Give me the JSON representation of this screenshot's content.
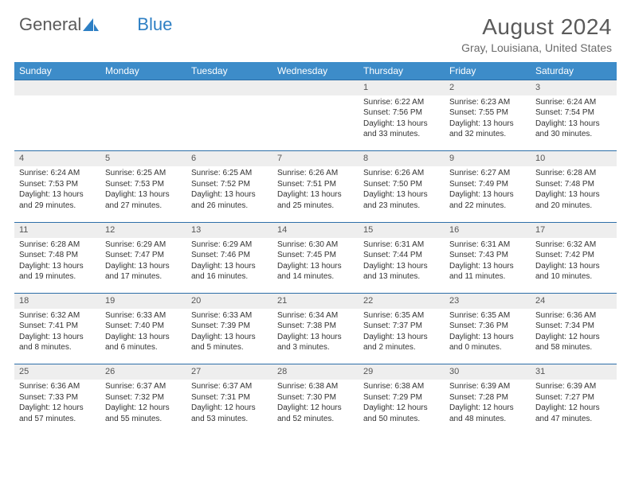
{
  "brand": {
    "word1": "General",
    "word2": "Blue"
  },
  "title": "August 2024",
  "location": "Gray, Louisiana, United States",
  "colors": {
    "header_bg": "#3d8cc9",
    "header_text": "#ffffff",
    "daynum_bg": "#eeeeee",
    "week_divider": "#2d6ea8",
    "text": "#333333",
    "title_color": "#5a5a5a"
  },
  "weekdays": [
    "Sunday",
    "Monday",
    "Tuesday",
    "Wednesday",
    "Thursday",
    "Friday",
    "Saturday"
  ],
  "weeks": [
    {
      "nums": [
        "",
        "",
        "",
        "",
        "1",
        "2",
        "3"
      ],
      "cells": [
        null,
        null,
        null,
        null,
        {
          "sunrise": "Sunrise: 6:22 AM",
          "sunset": "Sunset: 7:56 PM",
          "day1": "Daylight: 13 hours",
          "day2": "and 33 minutes."
        },
        {
          "sunrise": "Sunrise: 6:23 AM",
          "sunset": "Sunset: 7:55 PM",
          "day1": "Daylight: 13 hours",
          "day2": "and 32 minutes."
        },
        {
          "sunrise": "Sunrise: 6:24 AM",
          "sunset": "Sunset: 7:54 PM",
          "day1": "Daylight: 13 hours",
          "day2": "and 30 minutes."
        }
      ]
    },
    {
      "nums": [
        "4",
        "5",
        "6",
        "7",
        "8",
        "9",
        "10"
      ],
      "cells": [
        {
          "sunrise": "Sunrise: 6:24 AM",
          "sunset": "Sunset: 7:53 PM",
          "day1": "Daylight: 13 hours",
          "day2": "and 29 minutes."
        },
        {
          "sunrise": "Sunrise: 6:25 AM",
          "sunset": "Sunset: 7:53 PM",
          "day1": "Daylight: 13 hours",
          "day2": "and 27 minutes."
        },
        {
          "sunrise": "Sunrise: 6:25 AM",
          "sunset": "Sunset: 7:52 PM",
          "day1": "Daylight: 13 hours",
          "day2": "and 26 minutes."
        },
        {
          "sunrise": "Sunrise: 6:26 AM",
          "sunset": "Sunset: 7:51 PM",
          "day1": "Daylight: 13 hours",
          "day2": "and 25 minutes."
        },
        {
          "sunrise": "Sunrise: 6:26 AM",
          "sunset": "Sunset: 7:50 PM",
          "day1": "Daylight: 13 hours",
          "day2": "and 23 minutes."
        },
        {
          "sunrise": "Sunrise: 6:27 AM",
          "sunset": "Sunset: 7:49 PM",
          "day1": "Daylight: 13 hours",
          "day2": "and 22 minutes."
        },
        {
          "sunrise": "Sunrise: 6:28 AM",
          "sunset": "Sunset: 7:48 PM",
          "day1": "Daylight: 13 hours",
          "day2": "and 20 minutes."
        }
      ]
    },
    {
      "nums": [
        "11",
        "12",
        "13",
        "14",
        "15",
        "16",
        "17"
      ],
      "cells": [
        {
          "sunrise": "Sunrise: 6:28 AM",
          "sunset": "Sunset: 7:48 PM",
          "day1": "Daylight: 13 hours",
          "day2": "and 19 minutes."
        },
        {
          "sunrise": "Sunrise: 6:29 AM",
          "sunset": "Sunset: 7:47 PM",
          "day1": "Daylight: 13 hours",
          "day2": "and 17 minutes."
        },
        {
          "sunrise": "Sunrise: 6:29 AM",
          "sunset": "Sunset: 7:46 PM",
          "day1": "Daylight: 13 hours",
          "day2": "and 16 minutes."
        },
        {
          "sunrise": "Sunrise: 6:30 AM",
          "sunset": "Sunset: 7:45 PM",
          "day1": "Daylight: 13 hours",
          "day2": "and 14 minutes."
        },
        {
          "sunrise": "Sunrise: 6:31 AM",
          "sunset": "Sunset: 7:44 PM",
          "day1": "Daylight: 13 hours",
          "day2": "and 13 minutes."
        },
        {
          "sunrise": "Sunrise: 6:31 AM",
          "sunset": "Sunset: 7:43 PM",
          "day1": "Daylight: 13 hours",
          "day2": "and 11 minutes."
        },
        {
          "sunrise": "Sunrise: 6:32 AM",
          "sunset": "Sunset: 7:42 PM",
          "day1": "Daylight: 13 hours",
          "day2": "and 10 minutes."
        }
      ]
    },
    {
      "nums": [
        "18",
        "19",
        "20",
        "21",
        "22",
        "23",
        "24"
      ],
      "cells": [
        {
          "sunrise": "Sunrise: 6:32 AM",
          "sunset": "Sunset: 7:41 PM",
          "day1": "Daylight: 13 hours",
          "day2": "and 8 minutes."
        },
        {
          "sunrise": "Sunrise: 6:33 AM",
          "sunset": "Sunset: 7:40 PM",
          "day1": "Daylight: 13 hours",
          "day2": "and 6 minutes."
        },
        {
          "sunrise": "Sunrise: 6:33 AM",
          "sunset": "Sunset: 7:39 PM",
          "day1": "Daylight: 13 hours",
          "day2": "and 5 minutes."
        },
        {
          "sunrise": "Sunrise: 6:34 AM",
          "sunset": "Sunset: 7:38 PM",
          "day1": "Daylight: 13 hours",
          "day2": "and 3 minutes."
        },
        {
          "sunrise": "Sunrise: 6:35 AM",
          "sunset": "Sunset: 7:37 PM",
          "day1": "Daylight: 13 hours",
          "day2": "and 2 minutes."
        },
        {
          "sunrise": "Sunrise: 6:35 AM",
          "sunset": "Sunset: 7:36 PM",
          "day1": "Daylight: 13 hours",
          "day2": "and 0 minutes."
        },
        {
          "sunrise": "Sunrise: 6:36 AM",
          "sunset": "Sunset: 7:34 PM",
          "day1": "Daylight: 12 hours",
          "day2": "and 58 minutes."
        }
      ]
    },
    {
      "nums": [
        "25",
        "26",
        "27",
        "28",
        "29",
        "30",
        "31"
      ],
      "cells": [
        {
          "sunrise": "Sunrise: 6:36 AM",
          "sunset": "Sunset: 7:33 PM",
          "day1": "Daylight: 12 hours",
          "day2": "and 57 minutes."
        },
        {
          "sunrise": "Sunrise: 6:37 AM",
          "sunset": "Sunset: 7:32 PM",
          "day1": "Daylight: 12 hours",
          "day2": "and 55 minutes."
        },
        {
          "sunrise": "Sunrise: 6:37 AM",
          "sunset": "Sunset: 7:31 PM",
          "day1": "Daylight: 12 hours",
          "day2": "and 53 minutes."
        },
        {
          "sunrise": "Sunrise: 6:38 AM",
          "sunset": "Sunset: 7:30 PM",
          "day1": "Daylight: 12 hours",
          "day2": "and 52 minutes."
        },
        {
          "sunrise": "Sunrise: 6:38 AM",
          "sunset": "Sunset: 7:29 PM",
          "day1": "Daylight: 12 hours",
          "day2": "and 50 minutes."
        },
        {
          "sunrise": "Sunrise: 6:39 AM",
          "sunset": "Sunset: 7:28 PM",
          "day1": "Daylight: 12 hours",
          "day2": "and 48 minutes."
        },
        {
          "sunrise": "Sunrise: 6:39 AM",
          "sunset": "Sunset: 7:27 PM",
          "day1": "Daylight: 12 hours",
          "day2": "and 47 minutes."
        }
      ]
    }
  ]
}
